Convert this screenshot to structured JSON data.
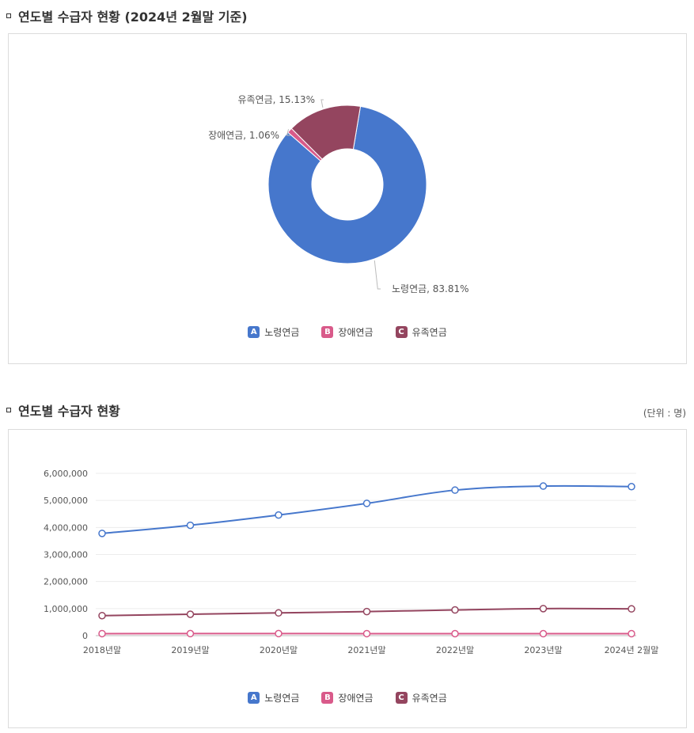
{
  "colors": {
    "old_age": "#4677cc",
    "disability": "#d95a8a",
    "survivor": "#94455f"
  },
  "section1": {
    "title": "연도별 수급자 현황 (2024년 2월말 기준)",
    "legend": [
      {
        "badge": "A",
        "label": "노령연금"
      },
      {
        "badge": "B",
        "label": "장애연금"
      },
      {
        "badge": "C",
        "label": "유족연금"
      }
    ]
  },
  "section2": {
    "title": "연도별 수급자 현황",
    "unit": "(단위 : 명)",
    "legend": [
      {
        "badge": "A",
        "label": "노령연금"
      },
      {
        "badge": "B",
        "label": "장애연금"
      },
      {
        "badge": "C",
        "label": "유족연금"
      }
    ]
  },
  "chart_data": [
    {
      "type": "pie",
      "title": "연도별 수급자 현황 (2024년 2월말 기준)",
      "slices": [
        {
          "name": "노령연금",
          "value": 83.81,
          "label": "노령연금, 83.81%"
        },
        {
          "name": "장애연금",
          "value": 1.06,
          "label": "장애연금, 1.06%"
        },
        {
          "name": "유족연금",
          "value": 15.13,
          "label": "유족연금, 15.13%"
        }
      ]
    },
    {
      "type": "line",
      "title": "연도별 수급자 현황",
      "categories": [
        "2018년말",
        "2019년말",
        "2020년말",
        "2021년말",
        "2022년말",
        "2023년말",
        "2024년 2월말"
      ],
      "ylim": [
        0,
        6000000
      ],
      "yticks": [
        0,
        1000000,
        2000000,
        3000000,
        4000000,
        5000000,
        6000000
      ],
      "ytick_labels": [
        "0",
        "1,000,000",
        "2,000,000",
        "3,000,000",
        "4,000,000",
        "5,000,000",
        "6,000,000"
      ],
      "series": [
        {
          "name": "노령연금",
          "values": [
            3780000,
            4080000,
            4460000,
            4890000,
            5380000,
            5530000,
            5510000
          ]
        },
        {
          "name": "장애연금",
          "values": [
            75000,
            76000,
            76000,
            75000,
            73000,
            72000,
            72000
          ]
        },
        {
          "name": "유족연금",
          "values": [
            740000,
            790000,
            840000,
            890000,
            950000,
            1000000,
            990000
          ]
        }
      ]
    }
  ]
}
